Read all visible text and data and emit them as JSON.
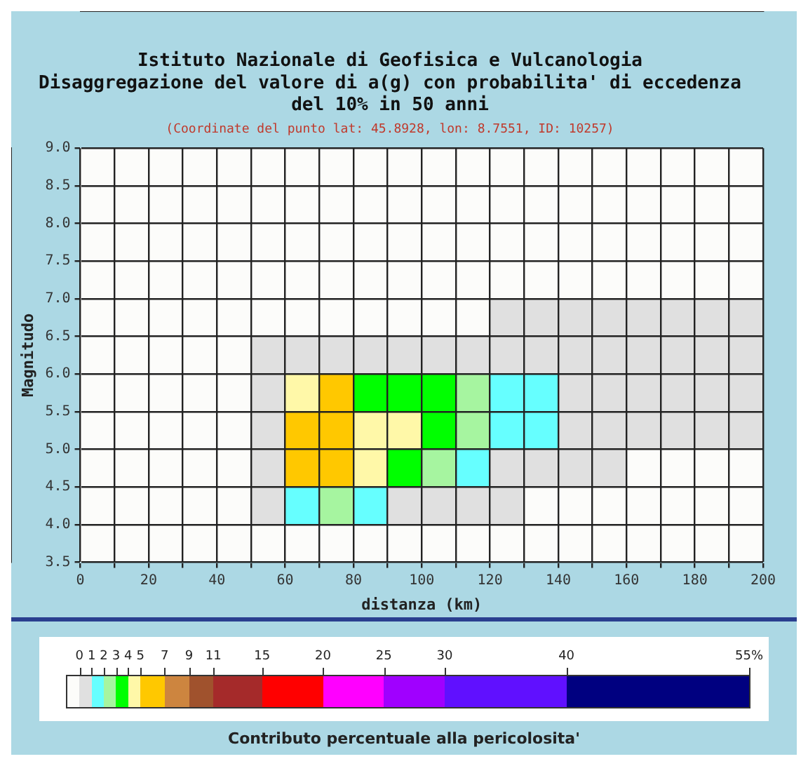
{
  "chart_data": {
    "type": "heatmap",
    "title": "Istituto Nazionale di Geofisica e Vulcanologia\nDisaggregazione del valore di a(g) con probabilita' di eccedenza\ndel 10% in 50 anni",
    "subtitle": "(Coordinate del punto lat: 45.8928, lon: 8.7551, ID: 10257)",
    "xlabel": "distanza (km)",
    "ylabel": "Magnitudo",
    "clabel": "Contributo percentuale alla pericolosita'",
    "xlim": [
      0,
      200
    ],
    "xticks": [
      0,
      {
        "value": 10,
        "label": null
      },
      20,
      {
        "value": 30,
        "label": null
      },
      40,
      {
        "value": 50,
        "label": null
      },
      60,
      {
        "value": 70,
        "label": null
      },
      80,
      {
        "value": 90,
        "label": null
      },
      100,
      {
        "value": 110,
        "label": null
      },
      120,
      {
        "value": 130,
        "label": null
      },
      140,
      {
        "value": 150,
        "label": null
      },
      160,
      {
        "value": 170,
        "label": null
      },
      180,
      {
        "value": 190,
        "label": null
      },
      200
    ],
    "ylim": [
      3.5,
      9
    ],
    "yticks": [
      3.5,
      {
        "value": 4,
        "label": "4.0"
      },
      4.5,
      {
        "value": 5,
        "label": "5.0"
      },
      5.5,
      {
        "value": 6,
        "label": "6.0"
      },
      6.5,
      {
        "value": 7,
        "label": "7.0"
      },
      7.5,
      {
        "value": 8,
        "label": "8.0"
      },
      8.5,
      {
        "value": 9,
        "label": "9.0"
      }
    ],
    "grid": true,
    "cells": [
      [
        0,
        0,
        0,
        0,
        0,
        0,
        0,
        0,
        0,
        0,
        0,
        0,
        0,
        0,
        0,
        0,
        0,
        0,
        0,
        0
      ],
      [
        0,
        0,
        0,
        0,
        0,
        0,
        0,
        0,
        0,
        0,
        0,
        0,
        0,
        0,
        0,
        0,
        0,
        0,
        0,
        0
      ],
      [
        0,
        0,
        0,
        0,
        0,
        0,
        0,
        0,
        0,
        0,
        0,
        0,
        0,
        0,
        0,
        0,
        0,
        0,
        0,
        0
      ],
      [
        0,
        0,
        0,
        0,
        0,
        0,
        0,
        0,
        0,
        0,
        0,
        0,
        0,
        0,
        0,
        0,
        0,
        0,
        0,
        0
      ],
      [
        0,
        0,
        0,
        0,
        0,
        0,
        0,
        0,
        0,
        0,
        0,
        0,
        0.5,
        0.5,
        0.5,
        0.5,
        0.5,
        0.5,
        0.5,
        0.5
      ],
      [
        0,
        0,
        0,
        0,
        0,
        0.5,
        0.5,
        0.5,
        0.5,
        0.5,
        0.5,
        0.5,
        0.5,
        0.5,
        0.5,
        0.5,
        0.5,
        0.5,
        0.5,
        0.5
      ],
      [
        0,
        0,
        0,
        0,
        0,
        0.5,
        4.5,
        6,
        3.5,
        3.5,
        3.5,
        2.5,
        1.5,
        1.5,
        0.5,
        0.5,
        0.5,
        0.5,
        0.5,
        0.5
      ],
      [
        0,
        0,
        0,
        0,
        0,
        0.5,
        6,
        6,
        4.5,
        4.5,
        3.5,
        2.5,
        1.5,
        1.5,
        0.5,
        0.5,
        0.5,
        0.5,
        0.5,
        0.5
      ],
      [
        0,
        0,
        0,
        0,
        0,
        0.5,
        6,
        6,
        4.5,
        3.5,
        2.5,
        1.5,
        0.5,
        0.5,
        0.5,
        0.5,
        0,
        0,
        0,
        0
      ],
      [
        0,
        0,
        0,
        0,
        0,
        0.5,
        1.5,
        2.5,
        1.5,
        0.5,
        0.5,
        0.5,
        0.5,
        0,
        0,
        0,
        0,
        0,
        0,
        0
      ],
      [
        0,
        0,
        0,
        0,
        0,
        0,
        0,
        0,
        0,
        0,
        0,
        0,
        0,
        0,
        0,
        0,
        0,
        0,
        0,
        0
      ]
    ],
    "clim": [
      -1,
      55
    ],
    "cticks": [
      0,
      1,
      2,
      3,
      4,
      5,
      7,
      9,
      11,
      15,
      20,
      25,
      30,
      40,
      {
        "value": 55,
        "label": "55%"
      }
    ]
  }
}
